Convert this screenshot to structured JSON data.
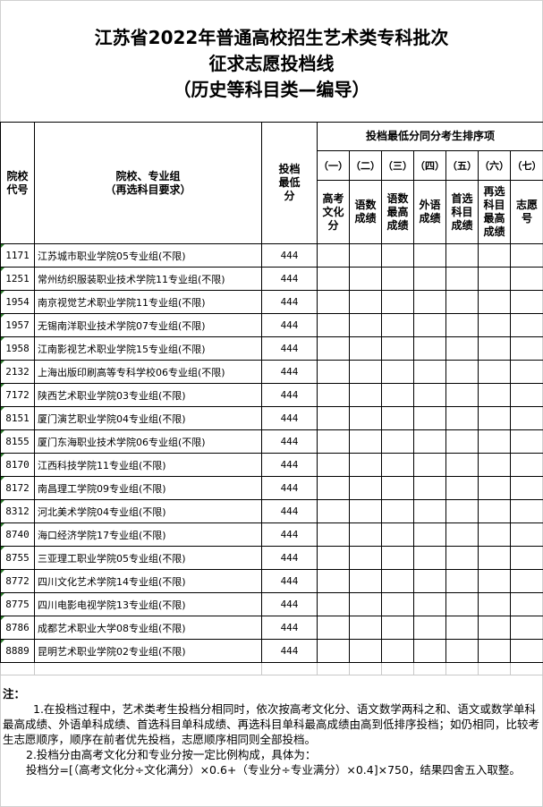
{
  "title": {
    "line1": "江苏省2022年普通高校招生艺术类专科批次",
    "line2": "征求志愿投档线",
    "line3": "（历史等科目类—编导）"
  },
  "table": {
    "headers": {
      "code": "院校代号",
      "name_line1": "院校、专业组",
      "name_line2": "（再选科目要求）",
      "score": "投档最低分",
      "group": "投档最低分同分考生排序项",
      "numerals": [
        "（一）",
        "（二）",
        "（三）",
        "（四）",
        "（五）",
        "（六）",
        "（七）"
      ],
      "items": [
        "高考文化分",
        "语数成绩",
        "语数最高成绩",
        "外语成绩",
        "首选科目成绩",
        "再选科目最高成绩",
        "志愿号"
      ]
    },
    "rows": [
      {
        "code": "1171",
        "name": "江苏城市职业学院05专业组(不限)",
        "score": "444"
      },
      {
        "code": "1251",
        "name": "常州纺织服装职业技术学院11专业组(不限)",
        "score": "444"
      },
      {
        "code": "1954",
        "name": "南京视觉艺术职业学院11专业组(不限)",
        "score": "444"
      },
      {
        "code": "1957",
        "name": "无锡南洋职业技术学院07专业组(不限)",
        "score": "444"
      },
      {
        "code": "1958",
        "name": "江南影视艺术职业学院15专业组(不限)",
        "score": "444"
      },
      {
        "code": "2132",
        "name": "上海出版印刷高等专科学校06专业组(不限)",
        "score": "444"
      },
      {
        "code": "7172",
        "name": "陕西艺术职业学院03专业组(不限)",
        "score": "444"
      },
      {
        "code": "8151",
        "name": "厦门演艺职业学院04专业组(不限)",
        "score": "444"
      },
      {
        "code": "8155",
        "name": "厦门东海职业技术学院06专业组(不限)",
        "score": "444"
      },
      {
        "code": "8170",
        "name": "江西科技学院11专业组(不限)",
        "score": "444"
      },
      {
        "code": "8172",
        "name": "南昌理工学院09专业组(不限)",
        "score": "444"
      },
      {
        "code": "8312",
        "name": "河北美术学院04专业组(不限)",
        "score": "444"
      },
      {
        "code": "8740",
        "name": "海口经济学院17专业组(不限)",
        "score": "444"
      },
      {
        "code": "8755",
        "name": "三亚理工职业学院05专业组(不限)",
        "score": "444"
      },
      {
        "code": "8772",
        "name": "四川文化艺术学院14专业组(不限)",
        "score": "444"
      },
      {
        "code": "8775",
        "name": "四川电影电视学院13专业组(不限)",
        "score": "444"
      },
      {
        "code": "8786",
        "name": "成都艺术职业大学08专业组(不限)",
        "score": "444"
      },
      {
        "code": "8889",
        "name": "昆明艺术职业学院02专业组(不限)",
        "score": "444"
      }
    ]
  },
  "notes": {
    "label": "注：",
    "p1": "1.在投档过程中，艺术类考生投档分相同时，依次按高考文化分、语文数学两科之和、语文或数学单科最高成绩、外语单科成绩、首选科目单科成绩、再选科目单科最高成绩由高到低排序投档；如仍相同，比较考生志愿顺序，顺序在前者优先投档，志愿顺序相同则全部投档。",
    "p2": "2.投档分由高考文化分和专业分按一定比例构成，具体为：",
    "p3": "投档分=[（高考文化分÷文化满分）×0.6+（专业分÷专业满分）×0.4]×750，结果四舍五入取整。"
  }
}
